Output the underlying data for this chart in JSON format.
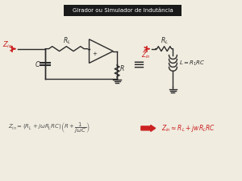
{
  "title": "Girador ou Simulador de Indutância",
  "title_bg": "#1a1a1a",
  "title_color": "#ffffff",
  "bg_color": "#f0ece0",
  "circuit_color": "#2a2a2a",
  "zin_color": "#cc2222",
  "formula_color": "#555555",
  "highlight_color": "#cc2222",
  "lw": 1.0
}
